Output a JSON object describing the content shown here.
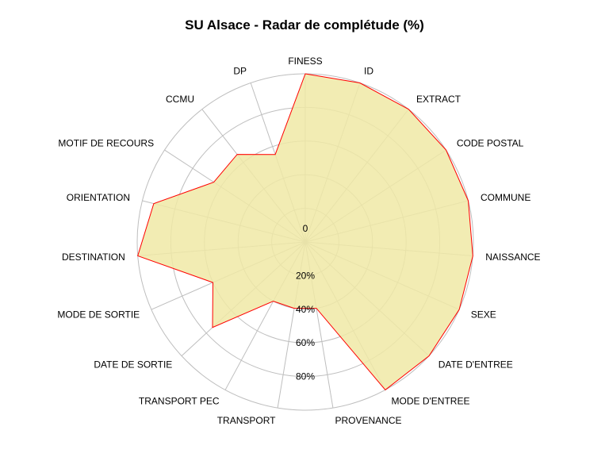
{
  "chart_data": {
    "type": "radar",
    "title": "SU Alsace - Radar de complétude (%)",
    "ylim": [
      0,
      100
    ],
    "ticks": [
      {
        "value": 0,
        "label": "0"
      },
      {
        "value": 20,
        "label": "20%"
      },
      {
        "value": 40,
        "label": "40%"
      },
      {
        "value": 60,
        "label": "60%"
      },
      {
        "value": 80,
        "label": "80%"
      }
    ],
    "categories": [
      "FINESS",
      "ID",
      "EXTRACT",
      "CODE POSTAL",
      "COMMUNE",
      "NAISSANCE",
      "SEXE",
      "DATE D'ENTREE",
      "MODE D'ENTREE",
      "PROVENANCE",
      "TRANSPORT",
      "TRANSPORT PEC",
      "DATE DE SORTIE",
      "MODE DE SORTIE",
      "DESTINATION",
      "ORIENTATION",
      "MOTIF DE RECOURS",
      "CCMU",
      "DP"
    ],
    "series": [
      {
        "values": [
          100,
          100,
          100,
          100,
          100,
          100,
          100,
          100,
          100,
          40,
          40,
          40,
          75,
          60,
          100,
          93,
          65,
          66,
          55
        ]
      }
    ],
    "colors": {
      "fill": "#f0e9a6",
      "stroke": "#ff0000",
      "grid": "#bebebe"
    },
    "grid": true
  }
}
